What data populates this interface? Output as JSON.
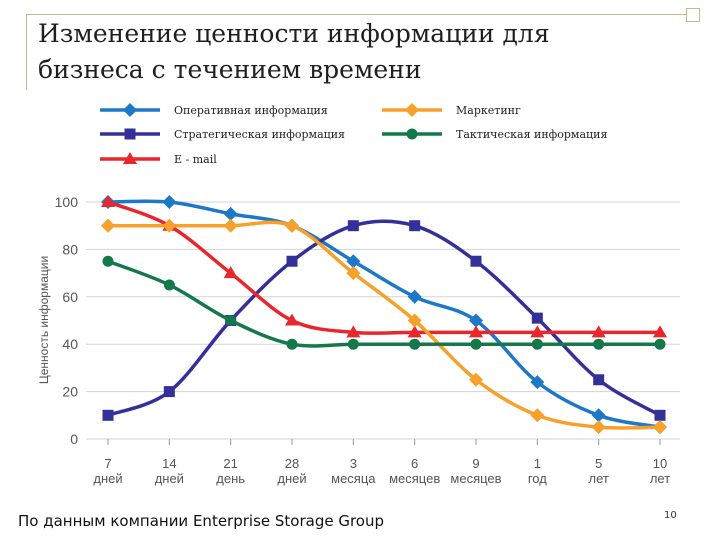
{
  "slide": {
    "title_line1": "Изменение ценности информации для",
    "title_line2": "бизнеса с течением времени",
    "footer": "По данным компании Enterprise Storage Group",
    "page_number": "10"
  },
  "chart_data": {
    "type": "line",
    "ylabel": "Ценность информации",
    "ylim": [
      0,
      100
    ],
    "yticks": [
      0,
      20,
      40,
      60,
      80,
      100
    ],
    "grid": true,
    "legend_position": "top",
    "categories": [
      [
        "7",
        "дней"
      ],
      [
        "14",
        "дней"
      ],
      [
        "21",
        "день"
      ],
      [
        "28",
        "дней"
      ],
      [
        "3",
        "месяца"
      ],
      [
        "6",
        "месяцев"
      ],
      [
        "9",
        "месяцев"
      ],
      [
        "1",
        "год"
      ],
      [
        "5",
        "лет"
      ],
      [
        "10",
        "лет"
      ]
    ],
    "series": [
      {
        "name": "Оперативная информация",
        "color": "#1e78c8",
        "marker": "diamond",
        "values": [
          100,
          100,
          95,
          90,
          75,
          60,
          50,
          24,
          10,
          5
        ]
      },
      {
        "name": "Стратегическая информация",
        "color": "#33309a",
        "marker": "square",
        "values": [
          10,
          20,
          50,
          75,
          90,
          90,
          75,
          51,
          25,
          10
        ]
      },
      {
        "name": "E - mail",
        "color": "#e8262c",
        "marker": "triangle",
        "values": [
          100,
          90,
          70,
          50,
          45,
          45,
          45,
          45,
          45,
          45
        ]
      },
      {
        "name": "Маркетинг",
        "color": "#f7a02a",
        "marker": "diamond",
        "values": [
          90,
          90,
          90,
          90,
          70,
          50,
          25,
          10,
          5,
          5
        ]
      },
      {
        "name": "Тактическая информация",
        "color": "#15784a",
        "marker": "circle",
        "values": [
          75,
          65,
          50,
          40,
          40,
          40,
          40,
          40,
          40,
          40
        ]
      }
    ]
  }
}
